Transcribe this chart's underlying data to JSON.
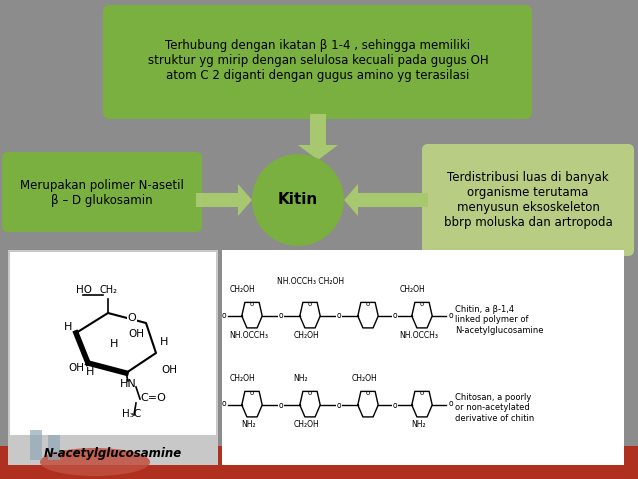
{
  "bg_color": "#8c8c8c",
  "top_box_color": "#7ab040",
  "top_box_text": "Terhubung dengan ikatan β 1-4 , sehingga memiliki\nstruktur yg mirip dengan selulosa kecuali pada gugus OH\natom C 2 diganti dengan gugus amino yg terasilasi",
  "left_box_color": "#7ab040",
  "left_box_text": "Merupakan polimer N-asetil\nβ – D glukosamin",
  "right_box_color": "#b8cc84",
  "right_box_text": "Terdistribusi luas di banyak\norganisme terutama\nmenyusun eksoskeleton\nbbrp moluska dan artropoda",
  "center_circle_color": "#7ab040",
  "center_text": "Kitin",
  "arrow_color": "#a8c870",
  "bottom_label": "N-acetylglucosamine",
  "figsize": [
    6.38,
    4.79
  ],
  "dpi": 100
}
